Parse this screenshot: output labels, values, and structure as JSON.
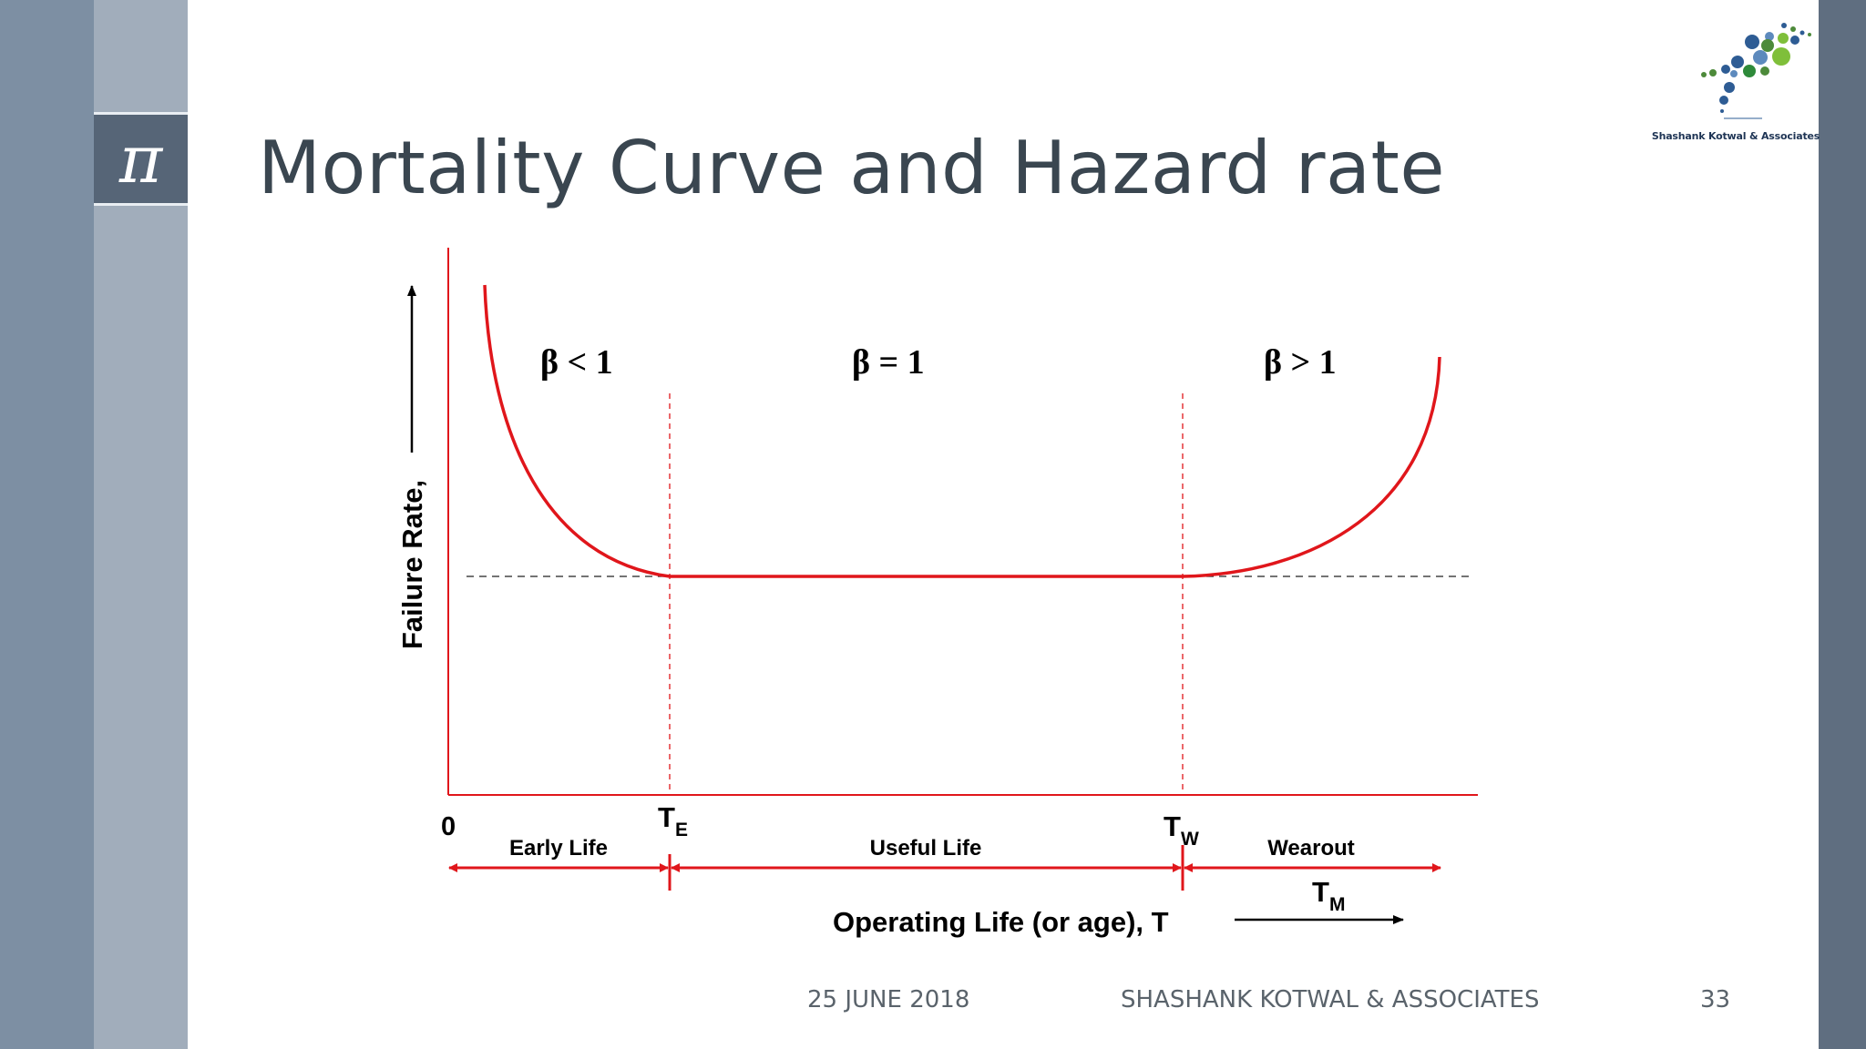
{
  "slide": {
    "title": "Mortality Curve and Hazard rate",
    "pi_symbol": "π",
    "logo_caption": "Shashank Kotwal & Associates"
  },
  "footer": {
    "date": "25 JUNE 2018",
    "company": "SHASHANK KOTWAL & ASSOCIATES",
    "page_number": "33"
  },
  "diagram": {
    "y_axis_label": "Failure Rate,",
    "x_axis_label": "Operating Life (or age), T",
    "origin_label": "0",
    "regions": [
      {
        "name": "Early Life",
        "beta": "β < 1"
      },
      {
        "name": "Useful Life",
        "beta": "β = 1"
      },
      {
        "name": "Wearout",
        "beta": "β > 1"
      }
    ],
    "markers": {
      "te_main": "T",
      "te_sub": "E",
      "tw_main": "T",
      "tw_sub": "W",
      "tm_main": "T",
      "tm_sub": "M"
    }
  },
  "colors": {
    "curve": "#e0161b",
    "title": "#3a4650",
    "accent": "#566577"
  }
}
